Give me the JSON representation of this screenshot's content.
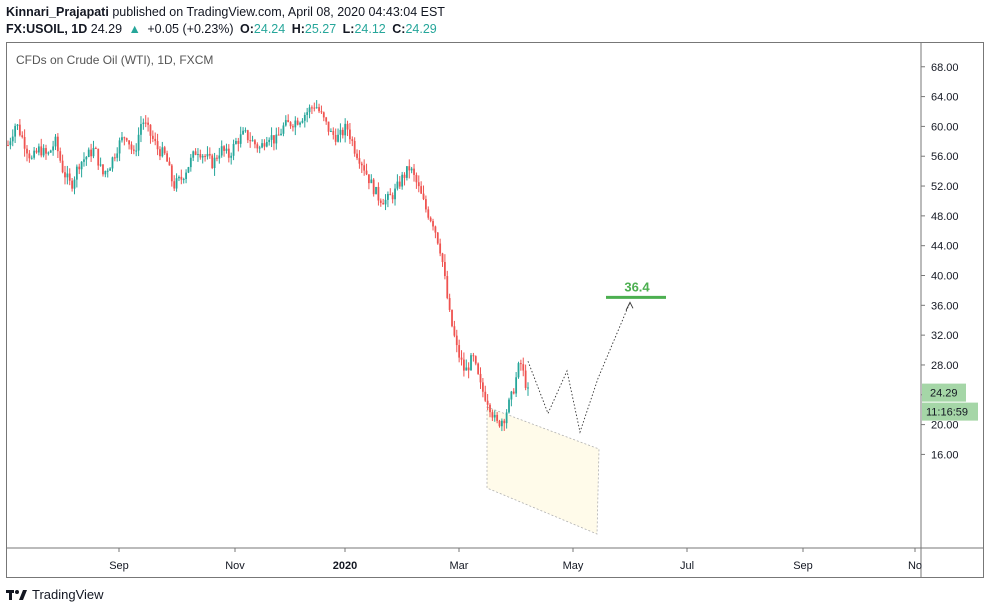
{
  "header": {
    "author": "Kinnari_Prajapati",
    "published": "published on TradingView.com, April 08, 2020 04:43:04 EST",
    "symbol": "FX:USOIL, 1D",
    "last": "24.29",
    "change": "+0.05 (+0.23%)",
    "o_label": "O:",
    "o_val": "24.24",
    "h_label": "H:",
    "h_val": "25.27",
    "l_label": "L:",
    "l_val": "24.12",
    "c_label": "C:",
    "c_val": "24.29"
  },
  "legend": "CFDs on Crude Oil (WTI), 1D, FXCM",
  "footer": {
    "brand": "TradingView"
  },
  "colors": {
    "up": "#26a69a",
    "down": "#ef5350",
    "target": "#4caf50",
    "price_badge": "#a5d6a7",
    "channel_fill": "#fffbea"
  },
  "chart_data": {
    "type": "candlestick",
    "y_ticks": [
      "68.00",
      "64.00",
      "60.00",
      "56.00",
      "52.00",
      "48.00",
      "44.00",
      "40.00",
      "36.00",
      "32.00",
      "28.00",
      "24.00",
      "20.00",
      "16.00"
    ],
    "ylim": [
      14.5,
      69.5
    ],
    "x_ticks": [
      "Sep",
      "Nov",
      "2020",
      "Mar",
      "May",
      "Jul",
      "Sep",
      "No"
    ],
    "last_price": "24.29",
    "countdown": "11:16:59",
    "target_label": "36.4",
    "target_value": 36.4,
    "close_path": [
      57.5,
      60.5,
      58,
      55.5,
      57,
      56,
      58,
      54,
      52,
      55,
      56,
      57,
      53.5,
      55,
      57.5,
      59,
      56,
      61,
      59,
      57,
      56,
      52,
      53,
      55,
      57,
      56,
      55,
      57,
      56,
      58,
      59,
      58,
      57,
      59,
      58,
      60,
      60.5,
      61,
      62,
      63,
      61,
      59,
      58.5,
      60,
      57,
      55,
      52.5,
      50.5,
      50,
      51,
      53,
      54.5,
      52,
      49,
      47,
      43,
      35,
      30,
      27,
      29,
      25,
      23,
      20,
      21,
      24,
      28.5,
      24.29
    ],
    "projection_path": [
      28.5,
      21.5,
      27.2,
      19,
      26.2,
      36.4
    ]
  }
}
